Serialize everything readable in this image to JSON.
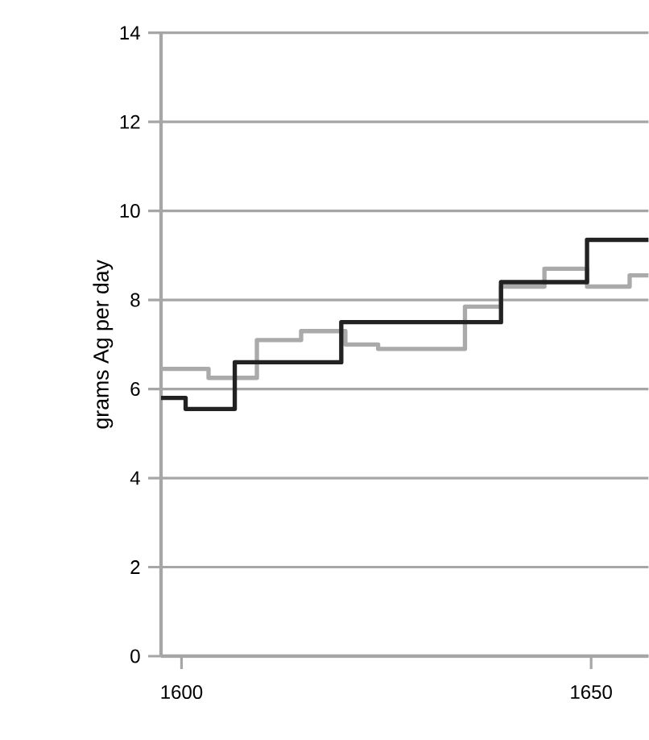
{
  "chart_data": {
    "type": "step",
    "ylabel": "grams Ag per day",
    "x": [
      1597.5,
      1600.5,
      1606.5,
      1619.5,
      1639,
      1649.5,
      1657
    ],
    "series": [
      {
        "color": "#aaaaaa",
        "x": [
          1597.5,
          1603.3,
          1609.2,
          1614.6,
          1620,
          1624,
          1634.6,
          1639,
          1644.3,
          1649.5,
          1654.7,
          1657
        ],
        "values": [
          6.45,
          6.25,
          7.1,
          7.3,
          7.0,
          6.9,
          7.85,
          8.3,
          8.7,
          8.3,
          8.55,
          8.55
        ]
      },
      {
        "color": "#222222",
        "values": [
          5.8,
          5.55,
          6.6,
          7.5,
          8.4,
          9.35,
          9.35
        ]
      }
    ],
    "xlim": [
      1597.5,
      1657
    ],
    "ylim": [
      0,
      14
    ],
    "xticks": [
      1600,
      1650
    ],
    "yticks": [
      0,
      2,
      4,
      6,
      8,
      10,
      12,
      14
    ],
    "grid": "y",
    "marker": "none",
    "line_style": "solid"
  }
}
